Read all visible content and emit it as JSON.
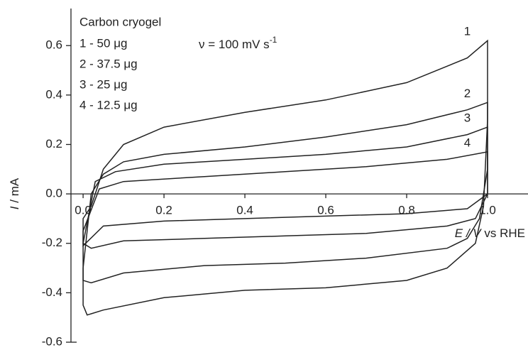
{
  "chart_data": {
    "type": "line",
    "legend_title": "Carbon cryogel",
    "annotation": {
      "text": "ν = 100  mV s",
      "superscript": "-1"
    },
    "x_label": {
      "italic": "E / V",
      "rest": "vs RHE"
    },
    "y_label": {
      "italic": "I",
      "rest": " / mA"
    },
    "color": "#222222",
    "xlim": [
      -0.03,
      1.1
    ],
    "ylim": [
      -0.6,
      0.75
    ],
    "xticks": [
      {
        "value": 0,
        "label": "0.0"
      },
      0.2,
      0.4,
      0.6,
      0.8,
      {
        "value": 1,
        "label": "1.0"
      }
    ],
    "yticks": [
      -0.6,
      -0.4,
      -0.2,
      {
        "value": 0,
        "label": "0.0"
      },
      0.2,
      0.4,
      0.6
    ],
    "series": [
      {
        "name": "1",
        "description": "1 - 50 μg",
        "x": [
          0.0,
          0.02,
          0.05,
          0.1,
          0.2,
          0.4,
          0.6,
          0.8,
          0.95,
          1.0,
          1.0,
          0.99,
          0.97,
          0.9,
          0.8,
          0.6,
          0.4,
          0.2,
          0.05,
          0.01,
          0.0
        ],
        "values": [
          -0.1,
          -0.05,
          0.1,
          0.2,
          0.27,
          0.33,
          0.38,
          0.45,
          0.55,
          0.62,
          0.3,
          -0.05,
          -0.2,
          -0.3,
          -0.35,
          -0.38,
          -0.39,
          -0.42,
          -0.47,
          -0.49,
          -0.45
        ]
      },
      {
        "name": "2",
        "description": "2 - 37.5 μg",
        "x": [
          0.0,
          0.02,
          0.05,
          0.1,
          0.2,
          0.4,
          0.6,
          0.8,
          0.95,
          1.0,
          1.0,
          0.98,
          0.95,
          0.9,
          0.7,
          0.5,
          0.3,
          0.1,
          0.02,
          0.0
        ],
        "values": [
          -0.3,
          0.0,
          0.08,
          0.13,
          0.16,
          0.19,
          0.23,
          0.28,
          0.34,
          0.37,
          0.1,
          -0.1,
          -0.18,
          -0.22,
          -0.26,
          -0.28,
          -0.29,
          -0.32,
          -0.36,
          -0.35
        ]
      },
      {
        "name": "3",
        "description": "3 - 25 μg",
        "x": [
          0.0,
          0.03,
          0.08,
          0.2,
          0.4,
          0.6,
          0.8,
          0.95,
          1.0,
          1.0,
          0.97,
          0.9,
          0.7,
          0.5,
          0.3,
          0.1,
          0.02,
          0.0
        ],
        "values": [
          -0.2,
          0.05,
          0.09,
          0.12,
          0.14,
          0.16,
          0.19,
          0.24,
          0.27,
          0.0,
          -0.1,
          -0.13,
          -0.16,
          -0.17,
          -0.18,
          -0.19,
          -0.22,
          -0.2
        ]
      },
      {
        "name": "4",
        "description": "4 - 12.5 μg",
        "x": [
          0.0,
          0.04,
          0.1,
          0.3,
          0.5,
          0.7,
          0.9,
          1.0,
          1.0,
          0.95,
          0.8,
          0.6,
          0.4,
          0.2,
          0.05,
          0.0
        ],
        "values": [
          -0.15,
          0.02,
          0.05,
          0.07,
          0.09,
          0.11,
          0.14,
          0.17,
          0.0,
          -0.06,
          -0.08,
          -0.09,
          -0.1,
          -0.11,
          -0.13,
          -0.21
        ]
      }
    ]
  }
}
